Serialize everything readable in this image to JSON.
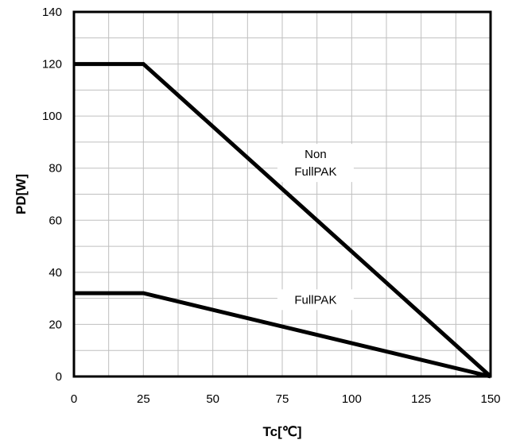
{
  "chart_data": {
    "type": "line",
    "title": "",
    "xlabel": "Tc[℃]",
    "ylabel": "PD[W]",
    "xlim": [
      0,
      150
    ],
    "ylim": [
      0,
      140
    ],
    "x_ticks": [
      "0",
      "25",
      "50",
      "75",
      "100",
      "125",
      "150"
    ],
    "y_ticks": [
      "0",
      "20",
      "40",
      "60",
      "80",
      "100",
      "120",
      "140"
    ],
    "grid": true,
    "legend": "none",
    "series": [
      {
        "name": "Non FullPAK",
        "color": "#000000",
        "x": [
          0,
          25,
          150
        ],
        "y": [
          120,
          120,
          0
        ]
      },
      {
        "name": "FullPAK",
        "color": "#000000",
        "x": [
          0,
          25,
          150
        ],
        "y": [
          32,
          32,
          0
        ]
      }
    ],
    "annotations": [
      {
        "lines": [
          "Non",
          "FullPAK"
        ],
        "x": 87,
        "y": 82
      },
      {
        "lines": [
          "FullPAK"
        ],
        "x": 87,
        "y": 29.5
      }
    ]
  }
}
